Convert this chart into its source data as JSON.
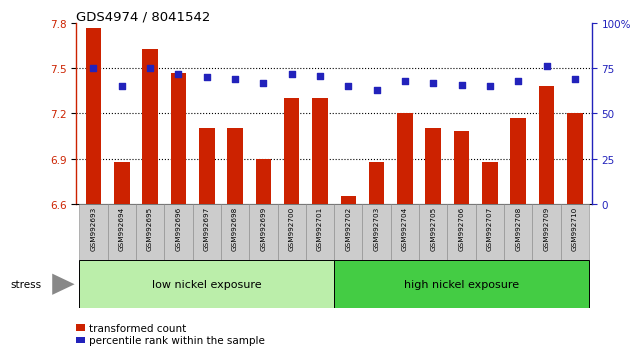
{
  "title": "GDS4974 / 8041542",
  "samples": [
    "GSM992693",
    "GSM992694",
    "GSM992695",
    "GSM992696",
    "GSM992697",
    "GSM992698",
    "GSM992699",
    "GSM992700",
    "GSM992701",
    "GSM992702",
    "GSM992703",
    "GSM992704",
    "GSM992705",
    "GSM992706",
    "GSM992707",
    "GSM992708",
    "GSM992709",
    "GSM992710"
  ],
  "transformed_count": [
    7.77,
    6.88,
    7.63,
    7.47,
    7.1,
    7.1,
    6.9,
    7.3,
    7.3,
    6.65,
    6.88,
    7.2,
    7.1,
    7.08,
    6.88,
    7.17,
    7.38,
    7.2
  ],
  "percentile_rank": [
    75,
    65,
    75,
    72,
    70,
    69,
    67,
    72,
    71,
    65,
    63,
    68,
    67,
    66,
    65,
    68,
    76,
    69
  ],
  "baseline": 6.6,
  "ylim_left": [
    6.6,
    7.8
  ],
  "ylim_right": [
    0,
    100
  ],
  "yticks_left": [
    6.6,
    6.9,
    7.2,
    7.5,
    7.8
  ],
  "yticks_right": [
    0,
    25,
    50,
    75,
    100
  ],
  "right_tick_labels": [
    "0",
    "25",
    "50",
    "75",
    "100%"
  ],
  "bar_color": "#cc2200",
  "dot_color": "#2222bb",
  "group1_label": "low nickel exposure",
  "group1_color": "#bbeeaa",
  "group1_count": 9,
  "group2_label": "high nickel exposure",
  "group2_color": "#44cc44",
  "stress_label": "stress",
  "legend_bar_label": "transformed count",
  "legend_dot_label": "percentile rank within the sample",
  "grid_dotted_at": [
    6.9,
    7.2,
    7.5
  ],
  "xlabel_bg": "#cccccc",
  "fig_bg": "#ffffff"
}
